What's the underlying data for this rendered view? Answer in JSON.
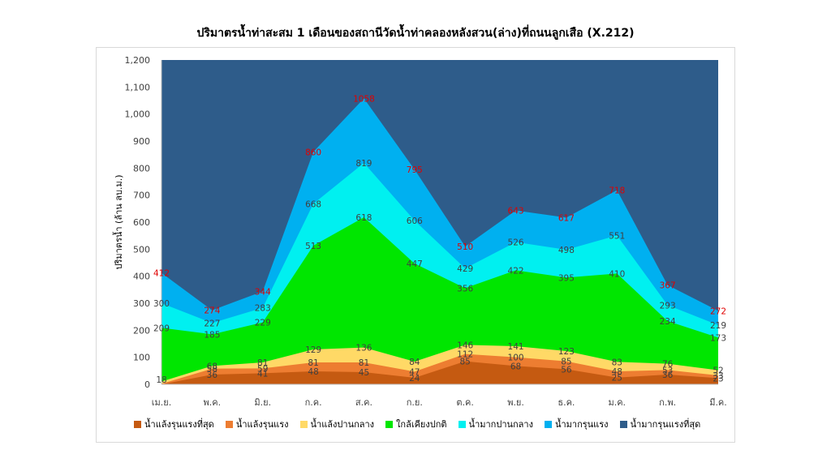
{
  "chart_data": {
    "type": "area",
    "title": "ปริมาตรน้ำท่าสะสม 1 เดือนของสถานีวัดน้ำท่าคลองหลังสวน(ล่าง)ที่ถนนลูกเสือ (X.212)",
    "xlabel": "",
    "ylabel": "ปริมาตรน้ำ (ล้าน ลบ.ม.)",
    "ylim": [
      0,
      1200
    ],
    "ytick_values": [
      0,
      100,
      200,
      300,
      400,
      500,
      600,
      700,
      800,
      900,
      1000,
      1100,
      1200
    ],
    "ytick_labels": [
      "0",
      "100",
      "200",
      "300",
      "400",
      "500",
      "600",
      "700",
      "800",
      "900",
      "1,000",
      "1,100",
      "1,200"
    ],
    "grid": false,
    "legend_position": "bottom",
    "categories": [
      "เม.ย.",
      "พ.ค.",
      "มิ.ย.",
      "ก.ค.",
      "ส.ค.",
      "ก.ย.",
      "ต.ค.",
      "พ.ย.",
      "ธ.ค.",
      "ม.ค.",
      "ก.พ.",
      "มี.ค."
    ],
    "series": [
      {
        "name": "น้ำแล้งรุนแรงที่สุด",
        "color": "#c55a11",
        "values": [
          0,
          36,
          41,
          48,
          45,
          24,
          85,
          68,
          56,
          25,
          36,
          23
        ],
        "labels": [
          "",
          "36",
          "41",
          "48",
          "45",
          "24",
          "85",
          "68",
          "56",
          "25",
          "36",
          "23"
        ]
      },
      {
        "name": "น้ำแล้งรุนแรง",
        "color": "#ed7d31",
        "values": [
          2,
          58,
          59,
          81,
          81,
          47,
          112,
          100,
          85,
          48,
          53,
          33
        ],
        "labels": [
          "",
          "58",
          "59",
          "81",
          "81",
          "47",
          "112",
          "100",
          "85",
          "48",
          "53",
          "33"
        ]
      },
      {
        "name": "น้ำแล้งปานกลาง",
        "color": "#ffd966",
        "values": [
          10,
          68,
          81,
          129,
          136,
          84,
          146,
          141,
          123,
          83,
          76,
          52
        ],
        "labels": [
          "",
          "68",
          "81",
          "129",
          "136",
          "84",
          "146",
          "141",
          "123",
          "83",
          "76",
          "52"
        ]
      },
      {
        "name": "ใกล้เคียงปกติ",
        "color": "#00e600",
        "values": [
          209,
          185,
          229,
          513,
          618,
          447,
          356,
          422,
          395,
          410,
          234,
          173
        ],
        "labels": [
          "209",
          "185",
          "229",
          "513",
          "618",
          "447",
          "356",
          "422",
          "395",
          "410",
          "234",
          "173"
        ]
      },
      {
        "name": "น้ำมากปานกลาง",
        "color": "#00f0f0",
        "values": [
          300,
          227,
          283,
          668,
          819,
          606,
          429,
          526,
          498,
          551,
          293,
          219
        ],
        "labels": [
          "300",
          "227",
          "283",
          "668",
          "819",
          "606",
          "429",
          "526",
          "498",
          "551",
          "293",
          "219"
        ]
      },
      {
        "name": "น้ำมากรุนแรง",
        "color": "#00b0f0",
        "values": [
          412,
          274,
          344,
          860,
          1058,
          795,
          510,
          643,
          617,
          718,
          367,
          272
        ],
        "labels": [
          "412",
          "274",
          "344",
          "860",
          "1058",
          "795",
          "510",
          "643",
          "617",
          "718",
          "367",
          "272"
        ]
      },
      {
        "name": "น้ำมากรุนแรงที่สุด",
        "color": "#2e5c8a",
        "values": [
          1200,
          1200,
          1200,
          1200,
          1200,
          1200,
          1200,
          1200,
          1200,
          1200,
          1200,
          1200
        ],
        "labels": []
      }
    ],
    "extra_labels": [
      {
        "text": "18",
        "category": "เม.ย.",
        "value": 18
      }
    ]
  }
}
